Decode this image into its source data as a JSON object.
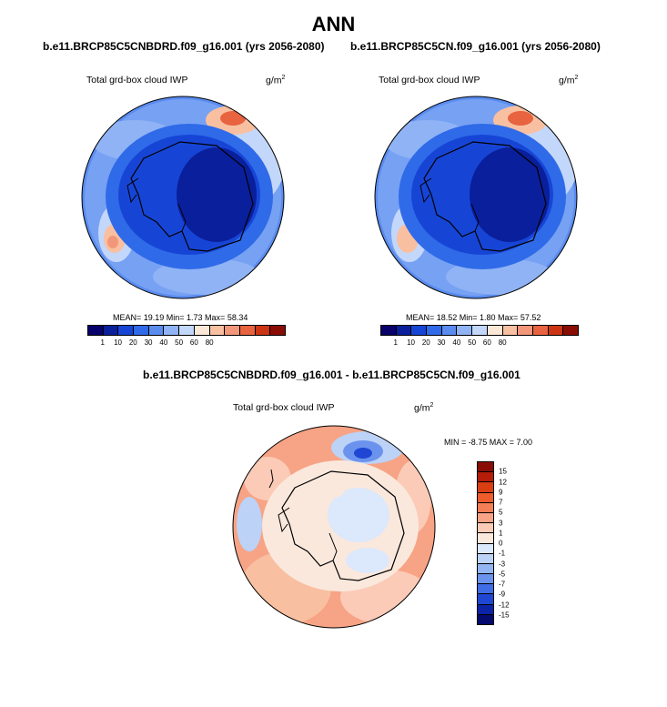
{
  "title": "ANN",
  "panels": [
    {
      "case_title": "b.e11.BRCP85C5CNBDRD.f09_g16.001 (yrs 2056-2080)",
      "var_label": "Total grd-box cloud IWP",
      "units": "g/m",
      "units_sup": "2",
      "stats": "MEAN=  19.19  Min=   1.73  Max=  58.34"
    },
    {
      "case_title": "b.e11.BRCP85C5CN.f09_g16.001 (yrs 2056-2080)",
      "var_label": "Total grd-box cloud IWP",
      "units": "g/m",
      "units_sup": "2",
      "stats": "MEAN=  18.52  Min=   1.80  Max=  57.52"
    }
  ],
  "diff_panel": {
    "title": "b.e11.BRCP85C5CNBDRD.f09_g16.001 - b.e11.BRCP85C5CN.f09_g16.001",
    "var_label": "Total grd-box cloud IWP",
    "units": "g/m",
    "units_sup": "2",
    "stats": "MIN =  -8.75 MAX =   7.00"
  },
  "abs_colorbar": {
    "colors": [
      "#08006b",
      "#0a1f9c",
      "#1645d6",
      "#2f6ae8",
      "#5a8cf0",
      "#8fb3f5",
      "#c3d7fa",
      "#fbe7d6",
      "#f8c0a1",
      "#f3977a",
      "#e8633f",
      "#cc3414",
      "#8a0d05"
    ],
    "tick_labels": [
      "1",
      "10",
      "20",
      "30",
      "40",
      "50",
      "60",
      "80"
    ]
  },
  "diff_colorbar": {
    "colors": [
      "#8a0d05",
      "#b51c09",
      "#d93d12",
      "#ef5c2c",
      "#f47e55",
      "#f7a385",
      "#fbcbb7",
      "#fbe8dc",
      "#dce8fb",
      "#bcd2f7",
      "#93b5f2",
      "#6b93ee",
      "#3f6de6",
      "#1f47d3",
      "#0d23a6",
      "#050a6e"
    ],
    "tick_labels": [
      "15",
      "12",
      "9",
      "7",
      "5",
      "3",
      "1",
      "0",
      "-1",
      "-3",
      "-5",
      "-7",
      "-9",
      "-12",
      "-15"
    ]
  },
  "colors": {
    "land_outline": "#000000",
    "abs_ocean": "#2f6ae8",
    "abs_ice": "#1645d6",
    "abs_core": "#0a1f9c",
    "diff_base": "#f8c0a1",
    "diff_ice": "#fbe8dc"
  }
}
